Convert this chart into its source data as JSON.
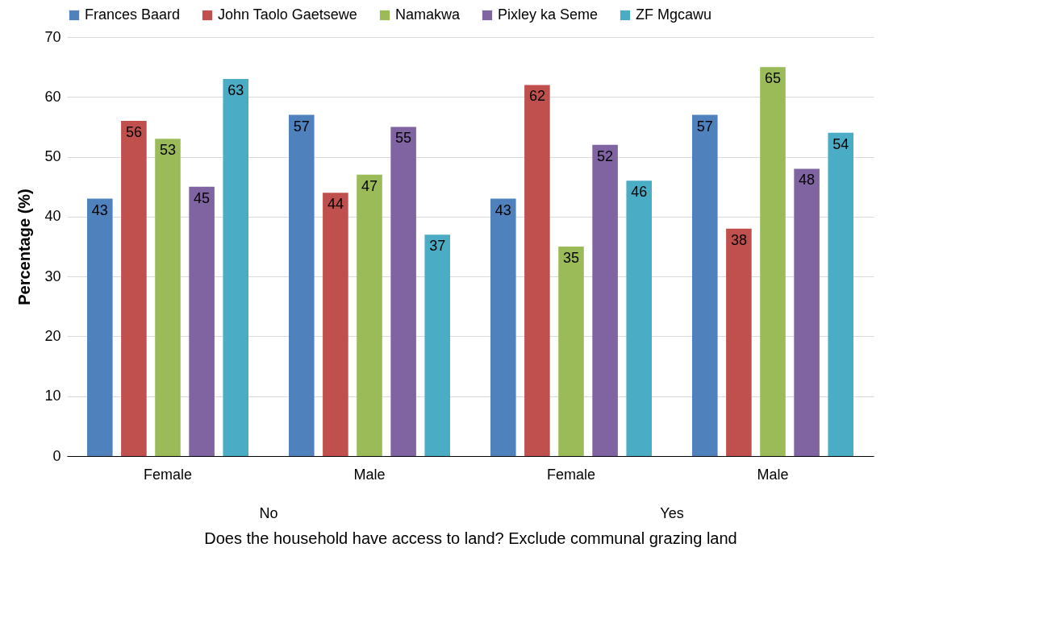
{
  "chart_data": {
    "type": "bar",
    "xlabel": "Does the household have access to land? Exclude communal grazing land",
    "ylabel": "Percentage (%)",
    "categories": [
      "Female",
      "Male",
      "Female",
      "Male"
    ],
    "annotations": [
      "No",
      "Yes"
    ],
    "series": [
      {
        "name": "Frances Baard",
        "color": "#4f81bd",
        "values": [
          43,
          57,
          43,
          57
        ]
      },
      {
        "name": "John Taolo Gaetsewe",
        "color": "#c0504d",
        "values": [
          56,
          44,
          62,
          38
        ]
      },
      {
        "name": "Namakwa",
        "color": "#9bbb59",
        "values": [
          53,
          47,
          35,
          65
        ]
      },
      {
        "name": "Pixley ka Seme",
        "color": "#8064a2",
        "values": [
          45,
          55,
          52,
          48
        ]
      },
      {
        "name": "ZF Mgcawu",
        "color": "#4bacc6",
        "values": [
          63,
          37,
          46,
          54
        ]
      }
    ],
    "ylim": [
      0,
      70
    ],
    "yticks": [
      0,
      10,
      20,
      30,
      40,
      50,
      60,
      70
    ],
    "grid": "y",
    "legend": "top",
    "data_labels": true
  }
}
